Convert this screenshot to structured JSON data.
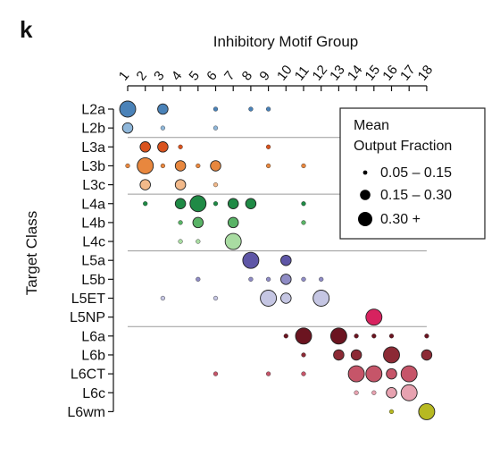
{
  "panel_label": "k",
  "chart_data": {
    "type": "scatter",
    "xlabel": "Inhibitory Motif Group",
    "ylabel": "Target Class",
    "x_categories": [
      "1",
      "2",
      "3",
      "4",
      "5",
      "6",
      "7",
      "8",
      "9",
      "10",
      "11",
      "12",
      "13",
      "14",
      "15",
      "16",
      "17",
      "18"
    ],
    "y_categories": [
      "L2a",
      "L2b",
      "L3a",
      "L3b",
      "L3c",
      "L4a",
      "L4b",
      "L4c",
      "L5a",
      "L5b",
      "L5ET",
      "L5NP",
      "L6a",
      "L6b",
      "L6CT",
      "L6c",
      "L6wm"
    ],
    "legend": {
      "title_lines": [
        "Mean",
        "Output Fraction"
      ],
      "placement": "top-right",
      "entries": [
        {
          "label": "0.05 – 0.15",
          "size": 1
        },
        {
          "label": "0.15 – 0.30",
          "size": 2
        },
        {
          "label": "0.30 +",
          "size": 3
        }
      ]
    },
    "row_colors": {
      "L2a": "#4a82b8",
      "L2b": "#8fb7da",
      "L3a": "#d9531e",
      "L3b": "#e8873e",
      "L3c": "#f2b98a",
      "L4a": "#1f8a45",
      "L4b": "#59b366",
      "L4c": "#a9dca2",
      "L5a": "#5e56a6",
      "L5b": "#8f8cc5",
      "L5ET": "#c5c6e3",
      "L5NP": "#d7225f",
      "L6a": "#6b1420",
      "L6b": "#8c2a35",
      "L6CT": "#c65569",
      "L6c": "#e7a2b0",
      "L6wm": "#b7b921"
    },
    "points": [
      {
        "row": "L2a",
        "col": 1,
        "size": 3
      },
      {
        "row": "L2a",
        "col": 3,
        "size": 2
      },
      {
        "row": "L2a",
        "col": 6,
        "size": 1
      },
      {
        "row": "L2a",
        "col": 8,
        "size": 1
      },
      {
        "row": "L2a",
        "col": 9,
        "size": 1
      },
      {
        "row": "L2b",
        "col": 1,
        "size": 2
      },
      {
        "row": "L2b",
        "col": 3,
        "size": 1
      },
      {
        "row": "L2b",
        "col": 6,
        "size": 1
      },
      {
        "row": "L3a",
        "col": 2,
        "size": 2
      },
      {
        "row": "L3a",
        "col": 3,
        "size": 2
      },
      {
        "row": "L3a",
        "col": 4,
        "size": 1
      },
      {
        "row": "L3a",
        "col": 9,
        "size": 1
      },
      {
        "row": "L3b",
        "col": 1,
        "size": 1
      },
      {
        "row": "L3b",
        "col": 2,
        "size": 3
      },
      {
        "row": "L3b",
        "col": 3,
        "size": 1
      },
      {
        "row": "L3b",
        "col": 4,
        "size": 2
      },
      {
        "row": "L3b",
        "col": 5,
        "size": 1
      },
      {
        "row": "L3b",
        "col": 6,
        "size": 2
      },
      {
        "row": "L3b",
        "col": 9,
        "size": 1
      },
      {
        "row": "L3b",
        "col": 11,
        "size": 1
      },
      {
        "row": "L3c",
        "col": 2,
        "size": 2
      },
      {
        "row": "L3c",
        "col": 4,
        "size": 2
      },
      {
        "row": "L3c",
        "col": 6,
        "size": 1
      },
      {
        "row": "L4a",
        "col": 2,
        "size": 1
      },
      {
        "row": "L4a",
        "col": 4,
        "size": 2
      },
      {
        "row": "L4a",
        "col": 5,
        "size": 3
      },
      {
        "row": "L4a",
        "col": 6,
        "size": 1
      },
      {
        "row": "L4a",
        "col": 7,
        "size": 2
      },
      {
        "row": "L4a",
        "col": 8,
        "size": 2
      },
      {
        "row": "L4a",
        "col": 11,
        "size": 1
      },
      {
        "row": "L4b",
        "col": 4,
        "size": 1
      },
      {
        "row": "L4b",
        "col": 5,
        "size": 2
      },
      {
        "row": "L4b",
        "col": 7,
        "size": 2
      },
      {
        "row": "L4b",
        "col": 11,
        "size": 1
      },
      {
        "row": "L4c",
        "col": 4,
        "size": 1
      },
      {
        "row": "L4c",
        "col": 5,
        "size": 1
      },
      {
        "row": "L4c",
        "col": 7,
        "size": 3
      },
      {
        "row": "L5a",
        "col": 8,
        "size": 3
      },
      {
        "row": "L5a",
        "col": 10,
        "size": 2
      },
      {
        "row": "L5b",
        "col": 5,
        "size": 1
      },
      {
        "row": "L5b",
        "col": 8,
        "size": 1
      },
      {
        "row": "L5b",
        "col": 9,
        "size": 1
      },
      {
        "row": "L5b",
        "col": 10,
        "size": 2
      },
      {
        "row": "L5b",
        "col": 11,
        "size": 1
      },
      {
        "row": "L5b",
        "col": 12,
        "size": 1
      },
      {
        "row": "L5ET",
        "col": 3,
        "size": 1
      },
      {
        "row": "L5ET",
        "col": 6,
        "size": 1
      },
      {
        "row": "L5ET",
        "col": 9,
        "size": 3
      },
      {
        "row": "L5ET",
        "col": 10,
        "size": 2
      },
      {
        "row": "L5ET",
        "col": 12,
        "size": 3
      },
      {
        "row": "L5NP",
        "col": 15,
        "size": 3
      },
      {
        "row": "L6a",
        "col": 10,
        "size": 1
      },
      {
        "row": "L6a",
        "col": 11,
        "size": 3
      },
      {
        "row": "L6a",
        "col": 13,
        "size": 3
      },
      {
        "row": "L6a",
        "col": 14,
        "size": 1
      },
      {
        "row": "L6a",
        "col": 15,
        "size": 1
      },
      {
        "row": "L6a",
        "col": 16,
        "size": 1
      },
      {
        "row": "L6a",
        "col": 18,
        "size": 1
      },
      {
        "row": "L6b",
        "col": 11,
        "size": 1
      },
      {
        "row": "L6b",
        "col": 13,
        "size": 2
      },
      {
        "row": "L6b",
        "col": 14,
        "size": 2
      },
      {
        "row": "L6b",
        "col": 16,
        "size": 3
      },
      {
        "row": "L6b",
        "col": 18,
        "size": 2
      },
      {
        "row": "L6CT",
        "col": 6,
        "size": 1
      },
      {
        "row": "L6CT",
        "col": 9,
        "size": 1
      },
      {
        "row": "L6CT",
        "col": 11,
        "size": 1
      },
      {
        "row": "L6CT",
        "col": 14,
        "size": 3
      },
      {
        "row": "L6CT",
        "col": 15,
        "size": 3
      },
      {
        "row": "L6CT",
        "col": 16,
        "size": 2
      },
      {
        "row": "L6CT",
        "col": 17,
        "size": 3
      },
      {
        "row": "L6c",
        "col": 14,
        "size": 1
      },
      {
        "row": "L6c",
        "col": 15,
        "size": 1
      },
      {
        "row": "L6c",
        "col": 16,
        "size": 2
      },
      {
        "row": "L6c",
        "col": 17,
        "size": 3
      },
      {
        "row": "L6wm",
        "col": 16,
        "size": 1
      },
      {
        "row": "L6wm",
        "col": 18,
        "size": 3
      }
    ]
  }
}
